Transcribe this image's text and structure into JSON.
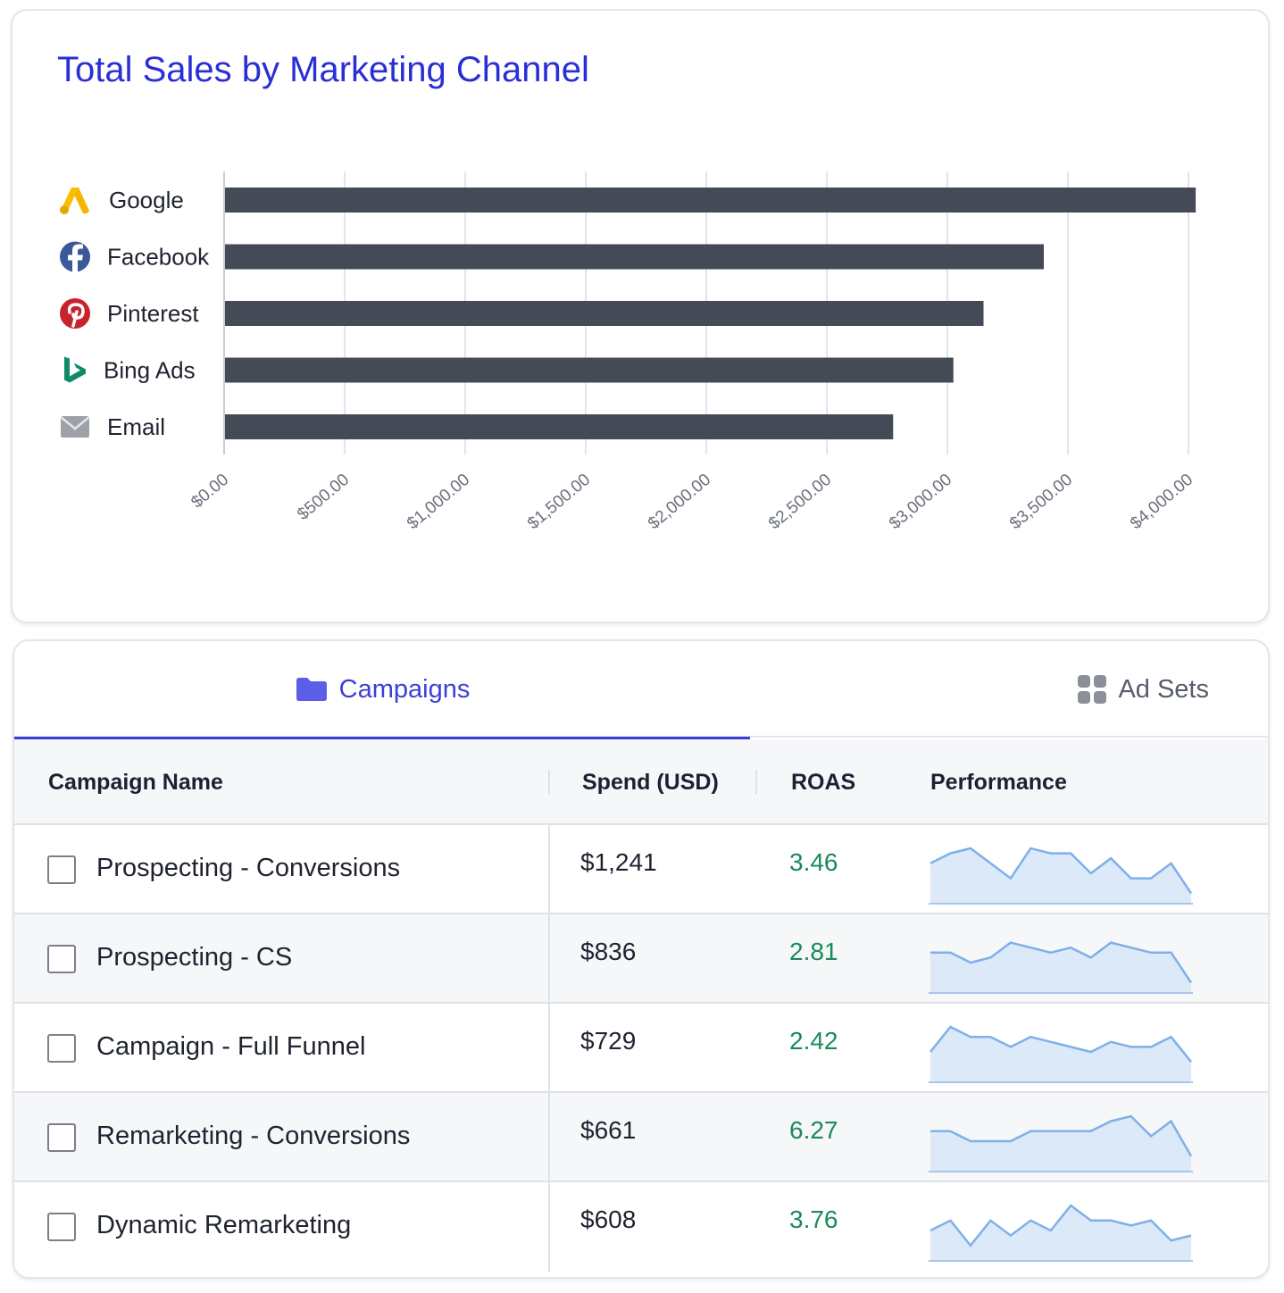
{
  "chart_data": {
    "type": "bar",
    "orientation": "horizontal",
    "title": "Total Sales by Marketing Channel",
    "categories": [
      "Google",
      "Facebook",
      "Pinterest",
      "Bing Ads",
      "Email"
    ],
    "category_icons": [
      "google-ads-icon",
      "facebook-icon",
      "pinterest-icon",
      "bing-icon",
      "email-icon"
    ],
    "values": [
      4030,
      3400,
      3150,
      3025,
      2775
    ],
    "xlim": [
      0,
      4000
    ],
    "x_ticks": [
      "$0.00",
      "$500.00",
      "$1,000.00",
      "$1,500.00",
      "$2,000.00",
      "$2,500.00",
      "$3,000.00",
      "$3,500.00",
      "$4,000.00"
    ],
    "grid": "vertical",
    "bar_color": "#454a57"
  },
  "tabs": [
    {
      "label": "Campaigns",
      "icon": "folder-icon",
      "active": true
    },
    {
      "label": "Ad Sets",
      "icon": "grid-icon",
      "active": false
    }
  ],
  "table": {
    "columns": [
      "Campaign Name",
      "Spend (USD)",
      "ROAS",
      "Performance"
    ],
    "rows": [
      {
        "name": "Prospecting - Conversions",
        "spend": "$1,241",
        "roas": "3.46",
        "trend": [
          7,
          9,
          10,
          7,
          4,
          10,
          9,
          9,
          5,
          8,
          4,
          4,
          7,
          1
        ]
      },
      {
        "name": "Prospecting - CS",
        "spend": "$836",
        "roas": "2.81",
        "trend": [
          7,
          7,
          5,
          6,
          9,
          8,
          7,
          8,
          6,
          9,
          8,
          7,
          7,
          1
        ]
      },
      {
        "name": "Campaign - Full Funnel",
        "spend": "$729",
        "roas": "2.42",
        "trend": [
          5,
          10,
          8,
          8,
          6,
          8,
          7,
          6,
          5,
          7,
          6,
          6,
          8,
          3
        ]
      },
      {
        "name": "Remarketing - Conversions",
        "spend": "$661",
        "roas": "6.27",
        "trend": [
          7,
          7,
          5,
          5,
          5,
          7,
          7,
          7,
          7,
          9,
          10,
          6,
          9,
          2
        ]
      },
      {
        "name": "Dynamic Remarketing",
        "spend": "$608",
        "roas": "3.76",
        "trend": [
          5,
          7,
          2,
          7,
          4,
          7,
          5,
          10,
          7,
          7,
          6,
          7,
          3,
          4
        ]
      }
    ]
  },
  "colors": {
    "title": "#2a2ed6",
    "accent": "#3b3fd8",
    "roas": "#1a8a5a",
    "spark_line": "#7fb0e8",
    "spark_fill": "#dce9f8"
  }
}
